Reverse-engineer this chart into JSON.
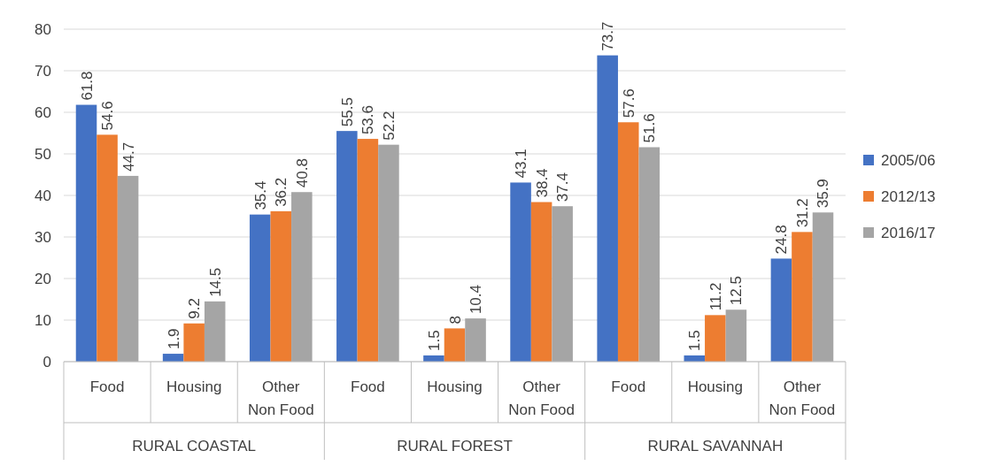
{
  "chart_data": {
    "type": "bar",
    "categories": [
      "Food",
      "Housing",
      "Other Non Food",
      "Food",
      "Housing",
      "Other Non Food",
      "Food",
      "Housing",
      "Other Non Food"
    ],
    "series": [
      {
        "name": "2005/06",
        "color": "#4472c4",
        "values": [
          61.8,
          1.9,
          35.4,
          55.5,
          1.5,
          43.1,
          73.7,
          1.5,
          24.8
        ]
      },
      {
        "name": "2012/13",
        "color": "#ed7d31",
        "values": [
          54.6,
          9.2,
          36.2,
          53.6,
          8,
          38.4,
          57.6,
          11.2,
          31.2
        ]
      },
      {
        "name": "2016/17",
        "color": "#a5a5a5",
        "values": [
          44.7,
          14.5,
          40.8,
          52.2,
          10.4,
          37.4,
          51.6,
          12.5,
          35.9
        ]
      }
    ],
    "annotations": [
      "RURAL COASTAL",
      "RURAL FOREST",
      "RURAL SAVANNAH"
    ],
    "ylim": [
      0,
      80
    ],
    "yticks": [
      0,
      10,
      20,
      30,
      40,
      50,
      60,
      70,
      80
    ],
    "grid": "y",
    "legend": "right",
    "data_labels": true
  }
}
